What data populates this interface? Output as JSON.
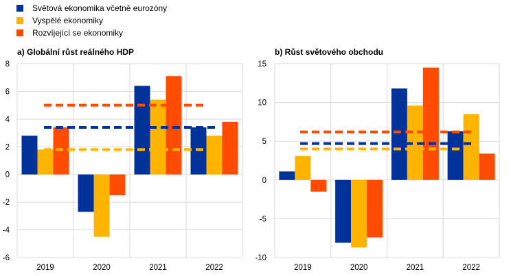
{
  "legend": [
    {
      "name": "Světová ekonomika včetně eurozóny",
      "color": "#003299"
    },
    {
      "name": "Vyspělé ekonomiky",
      "color": "#FFB400"
    },
    {
      "name": "Rozvíjející se ekonomiky",
      "color": "#FF4B00"
    }
  ],
  "chart_data": [
    {
      "type": "bar",
      "title": "a) Globální růst reálného HDP",
      "categories": [
        "2019",
        "2020",
        "2021",
        "2022"
      ],
      "ylim": [
        -6,
        8
      ],
      "yticks": [
        -6,
        -4,
        -2,
        0,
        2,
        4,
        6,
        8
      ],
      "grid": true,
      "series": [
        {
          "name": "Světová ekonomika včetně eurozóny",
          "values": [
            2.8,
            -2.7,
            6.4,
            3.4
          ],
          "average": 3.4
        },
        {
          "name": "Vyspělé ekonomiky",
          "values": [
            1.8,
            -4.5,
            5.4,
            2.8
          ],
          "average": 1.8
        },
        {
          "name": "Rozvíjející se ekonomiky",
          "values": [
            3.4,
            -1.5,
            7.1,
            3.8
          ],
          "average": 5.0
        }
      ]
    },
    {
      "type": "bar",
      "title": "b) Růst světového obchodu",
      "categories": [
        "2019",
        "2020",
        "2021",
        "2022"
      ],
      "ylim": [
        -10,
        15
      ],
      "yticks": [
        -10,
        -5,
        0,
        5,
        10,
        15
      ],
      "grid": true,
      "series": [
        {
          "name": "Světová ekonomika včetně eurozóny",
          "values": [
            1.1,
            -8.1,
            11.8,
            6.3
          ],
          "average": 4.7
        },
        {
          "name": "Vyspělé ekonomiky",
          "values": [
            3.1,
            -8.7,
            9.6,
            8.5
          ],
          "average": 4.0
        },
        {
          "name": "Rozvíjející se ekonomiky",
          "values": [
            -1.5,
            -7.4,
            14.5,
            3.4
          ],
          "average": 6.2
        }
      ]
    }
  ]
}
